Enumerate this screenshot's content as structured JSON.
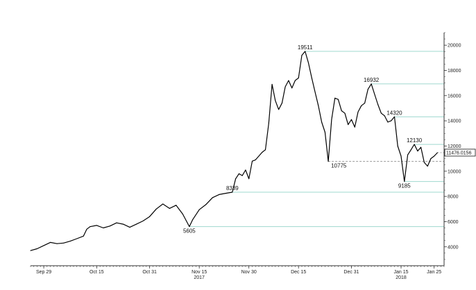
{
  "chart_data": {
    "type": "line",
    "title": "",
    "xlabel": "",
    "ylabel": "",
    "x_ticks": [
      "Sep 29",
      "Oct 15",
      "Oct 31",
      "Nov 15",
      "Nov 30",
      "Dec 15",
      "Dec 31",
      "Jan 15",
      "Jan 25"
    ],
    "x_tick_dates": [
      "2017-09-29",
      "2017-10-15",
      "2017-10-31",
      "2017-11-15",
      "2017-11-30",
      "2017-12-15",
      "2017-12-31",
      "2018-01-15",
      "2018-01-25"
    ],
    "year_labels": [
      {
        "label": "2017",
        "date": "2017-11-15"
      },
      {
        "label": "2018",
        "date": "2018-01-15"
      }
    ],
    "y_ticks": [
      4000,
      6000,
      8000,
      10000,
      12000,
      14000,
      16000,
      18000,
      20000
    ],
    "y_tick_labels": [
      "4000",
      "6000",
      "8000",
      "10000",
      "12000",
      "14000",
      "16000",
      "18000",
      "20000"
    ],
    "ylim": [
      2500,
      21000
    ],
    "xlim": [
      "2017-09-25",
      "2018-01-28"
    ],
    "grid": false,
    "series": [
      {
        "x": [
          "2017-09-25",
          "2017-09-27",
          "2017-09-29",
          "2017-10-01",
          "2017-10-03",
          "2017-10-05",
          "2017-10-07",
          "2017-10-09",
          "2017-10-11",
          "2017-10-12",
          "2017-10-13",
          "2017-10-15",
          "2017-10-17",
          "2017-10-19",
          "2017-10-21",
          "2017-10-23",
          "2017-10-25",
          "2017-10-27",
          "2017-10-29",
          "2017-10-31",
          "2017-11-02",
          "2017-11-04",
          "2017-11-06",
          "2017-11-08",
          "2017-11-10",
          "2017-11-12",
          "2017-11-13",
          "2017-11-15",
          "2017-11-17",
          "2017-11-19",
          "2017-11-21",
          "2017-11-23",
          "2017-11-25",
          "2017-11-26",
          "2017-11-27",
          "2017-11-28",
          "2017-11-29",
          "2017-11-30",
          "2017-12-01",
          "2017-12-02",
          "2017-12-03",
          "2017-12-04",
          "2017-12-05",
          "2017-12-06",
          "2017-12-07",
          "2017-12-08",
          "2017-12-09",
          "2017-12-10",
          "2017-12-11",
          "2017-12-12",
          "2017-12-13",
          "2017-12-14",
          "2017-12-15",
          "2017-12-16",
          "2017-12-17",
          "2017-12-18",
          "2017-12-19",
          "2017-12-20",
          "2017-12-21",
          "2017-12-22",
          "2017-12-23",
          "2017-12-24",
          "2017-12-25",
          "2017-12-26",
          "2017-12-27",
          "2017-12-28",
          "2017-12-29",
          "2017-12-30",
          "2017-12-31",
          "2018-01-01",
          "2018-01-02",
          "2018-01-03",
          "2018-01-04",
          "2018-01-05",
          "2018-01-06",
          "2018-01-07",
          "2018-01-08",
          "2018-01-09",
          "2018-01-10",
          "2018-01-11",
          "2018-01-12",
          "2018-01-13",
          "2018-01-14",
          "2018-01-15",
          "2018-01-16",
          "2018-01-17",
          "2018-01-18",
          "2018-01-19",
          "2018-01-20",
          "2018-01-21",
          "2018-01-22",
          "2018-01-23",
          "2018-01-24",
          "2018-01-25",
          "2018-01-26"
        ],
        "y": [
          3700,
          3850,
          4100,
          4350,
          4250,
          4300,
          4450,
          4650,
          4850,
          5400,
          5600,
          5700,
          5500,
          5650,
          5900,
          5800,
          5550,
          5800,
          6050,
          6400,
          7000,
          7400,
          7050,
          7300,
          6600,
          5605,
          6150,
          6950,
          7350,
          7900,
          8150,
          8250,
          8339,
          9400,
          9800,
          9650,
          10100,
          9400,
          10800,
          10900,
          11200,
          11500,
          11700,
          13800,
          16900,
          15600,
          14900,
          15400,
          16700,
          17200,
          16600,
          17200,
          17400,
          19200,
          19511,
          18600,
          17400,
          16300,
          15200,
          13900,
          13100,
          10775,
          14100,
          15800,
          15700,
          14800,
          14600,
          13700,
          14100,
          13500,
          14700,
          15200,
          15400,
          16500,
          16932,
          16100,
          15300,
          14600,
          14400,
          13900,
          14000,
          14320,
          12000,
          11200,
          9185,
          11300,
          11700,
          12130,
          11600,
          11900,
          10700,
          10400,
          11000,
          11200,
          11476
        ]
      }
    ],
    "annotations": [
      {
        "label": "19511",
        "date": "2017-12-17",
        "value": 19511
      },
      {
        "label": "16932",
        "date": "2018-01-06",
        "value": 16932
      },
      {
        "label": "14320",
        "date": "2018-01-13",
        "value": 14320
      },
      {
        "label": "12130",
        "date": "2018-01-19",
        "value": 12130
      },
      {
        "label": "10775",
        "date": "2017-12-24",
        "value": 10775
      },
      {
        "label": "9185",
        "date": "2018-01-16",
        "value": 9185
      },
      {
        "label": "8339",
        "date": "2017-11-25",
        "value": 8339
      },
      {
        "label": "5605",
        "date": "2017-11-12",
        "value": 5605
      }
    ],
    "reference_lines": [
      19511,
      16932,
      14320,
      12130,
      9185,
      8339,
      5605
    ],
    "dashed_reference_line": 10775,
    "last_value_label": "11476.0156",
    "last_value": 11476.0156,
    "colors": {
      "line": "#000000",
      "reference": "#9fd8cf",
      "dashed": "#888888",
      "axis": "#333333"
    }
  }
}
